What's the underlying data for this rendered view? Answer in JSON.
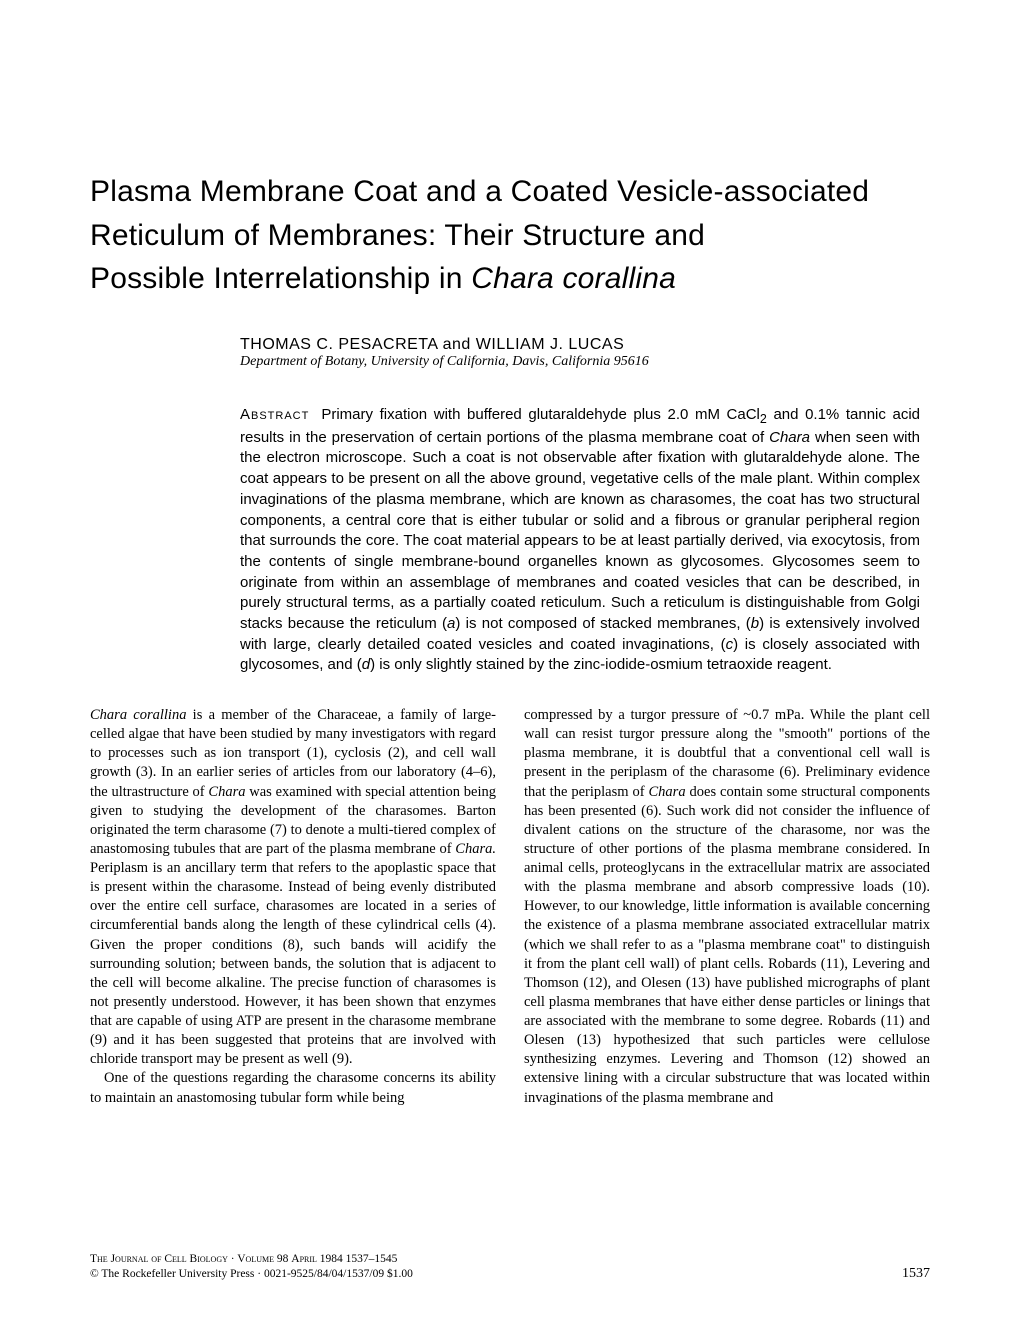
{
  "title": {
    "line1": "Plasma Membrane Coat and a Coated Vesicle-associated",
    "line2": "Reticulum of Membranes: Their Structure and",
    "line3_a": "Possible Interrelationship in ",
    "line3_b_italic": "Chara corallina"
  },
  "authors": "THOMAS C. PESACRETA and WILLIAM J. LUCAS",
  "affiliation": "Department of Botany, University of California, Davis, California 95616",
  "abstract": {
    "label": "Abstract",
    "p1a": "Primary fixation with buffered glutaraldehyde plus 2.0 mM CaCl",
    "p1sub": "2",
    "p1b": " and 0.1% tannic acid results in the preservation of certain portions of the plasma membrane coat of ",
    "p1c_italic": "Chara",
    "p1d": " when seen with the electron microscope. Such a coat is not observable after fixation with glutaraldehyde alone. The coat appears to be present on all the above ground, vegetative cells of the male plant. Within complex invaginations of the plasma membrane, which are known as charasomes, the coat has two structural components, a central core that is either tubular or solid and a fibrous or granular peripheral region that surrounds the core. The coat material appears to be at least partially derived, via exocytosis, from the contents of single membrane-bound organelles known as glycosomes. Glycosomes seem to originate from within an assemblage of membranes and coated vesicles that can be described, in purely structural terms, as a partially coated reticulum. Such a reticulum is distinguishable from Golgi stacks because the reticulum (",
    "p1e_italic": "a",
    "p1f": ") is not composed of stacked membranes, (",
    "p1g_italic": "b",
    "p1h": ") is extensively involved with large, clearly detailed coated vesicles and coated invaginations, (",
    "p1i_italic": "c",
    "p1j": ") is closely associated with glycosomes, and (",
    "p1k_italic": "d",
    "p1l": ") is only slightly stained by the zinc-iodide-osmium tetraoxide reagent."
  },
  "body": {
    "left": {
      "p1a_italic": "Chara corallina",
      "p1b": " is a member of the Characeae, a family of large-celled algae that have been studied by many investigators with regard to processes such as ion transport (1), cyclosis (2), and cell wall growth (3). In an earlier series of articles from our laboratory (4–6), the ultrastructure of ",
      "p1c_italic": "Chara",
      "p1d": " was examined with special attention being given to studying the development of the charasomes. Barton originated the term charasome (7) to denote a multi-tiered complex of anastomosing tubules that are part of the plasma membrane of ",
      "p1e_italic": "Chara.",
      "p1f": " Periplasm is an ancillary term that refers to the apoplastic space that is present within the charasome. Instead of being evenly distributed over the entire cell surface, charasomes are located in a series of circumferential bands along the length of these cylindrical cells (4). Given the proper conditions (8), such bands will acidify the surrounding solution; between bands, the solution that is adjacent to the cell will become alkaline. The precise function of charasomes is not presently understood. However, it has been shown that enzymes that are capable of using ATP are present in the charasome membrane (9) and it has been suggested that proteins that are involved with chloride transport may be present as well (9).",
      "p2": "One of the questions regarding the charasome concerns its ability to maintain an anastomosing tubular form while being"
    },
    "right": {
      "p1a": "compressed by a turgor pressure of ~0.7 mPa. While the plant cell wall can resist turgor pressure along the \"smooth\" portions of the plasma membrane, it is doubtful that a conventional cell wall is present in the periplasm of the charasome (6). Preliminary evidence that the periplasm of ",
      "p1b_italic": "Chara",
      "p1c": " does contain some structural components has been presented (6). Such work did not consider the influence of divalent cations on the structure of the charasome, nor was the structure of other portions of the plasma membrane considered. In animal cells, proteoglycans in the extracellular matrix are associated with the plasma membrane and absorb compressive loads (10). However, to our knowledge, little information is available concerning the existence of a plasma membrane associated extracellular matrix (which we shall refer to as a \"plasma membrane coat\" to distinguish it from the plant cell wall) of plant cells. Robards (11), Levering and Thomson (12), and Olesen (13) have published micrographs of plant cell plasma membranes that have either dense particles or linings that are associated with the membrane to some degree. Robards (11) and Olesen (13) hypothesized that such particles were cellulose synthesizing enzymes. Levering and Thomson (12) showed an extensive lining with a circular substructure that was located within invaginations of the plasma membrane and"
    }
  },
  "footer": {
    "line1a": "The Journal of Cell Biology · Volume",
    "line1b": " 98 ",
    "line1c": "April",
    "line1d": " 1984 1537–1545",
    "line2": "© The Rockefeller University Press · 0021-9525/84/04/1537/09 $1.00",
    "page": "1537"
  }
}
